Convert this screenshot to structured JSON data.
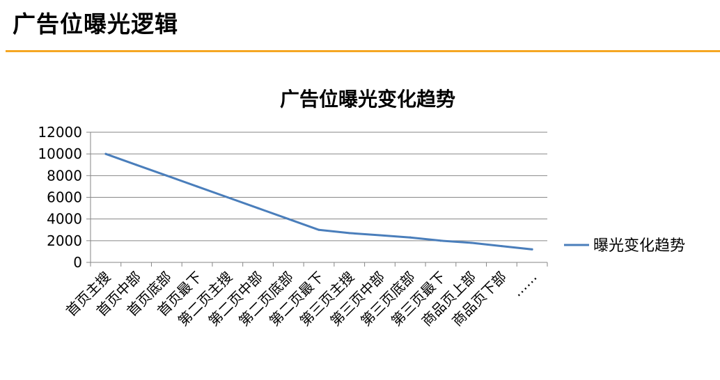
{
  "slide": {
    "title": "广告位曝光逻辑",
    "accent_color": "#F5A623"
  },
  "chart_data": {
    "type": "line",
    "title": "广告位曝光变化趋势",
    "categories": [
      "首页主搜",
      "首页中部",
      "首页底部",
      "首页最下",
      "第二页主搜",
      "第二页中部",
      "第二页底部",
      "第二页最下",
      "第三页主搜",
      "第三页中部",
      "第三页底部",
      "第三页最下",
      "商品页上部",
      "商品页下部",
      "……"
    ],
    "series": [
      {
        "name": "曝光变化趋势",
        "color": "#4A7EBB",
        "values": [
          10000,
          9000,
          8000,
          7000,
          6000,
          5000,
          4000,
          3000,
          2700,
          2500,
          2300,
          2000,
          1800,
          1500,
          1200
        ]
      }
    ],
    "ylim": [
      0,
      12000
    ],
    "yticks": [
      0,
      2000,
      4000,
      6000,
      8000,
      10000,
      12000
    ],
    "grid": true,
    "legend": "right",
    "xlabel": "",
    "ylabel": ""
  }
}
